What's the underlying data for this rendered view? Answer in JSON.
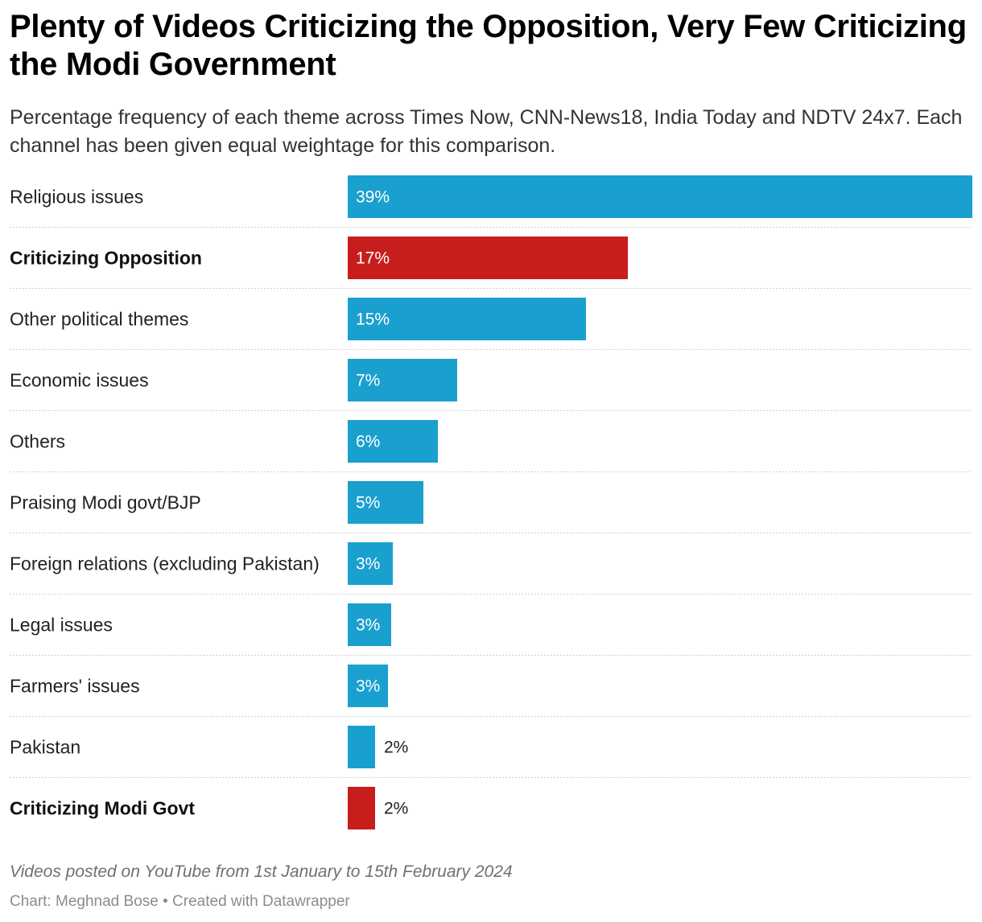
{
  "chart_data": {
    "type": "bar",
    "orientation": "horizontal",
    "title": "Plenty of Videos Criticizing the Opposition, Very Few Criticizing the Modi Government",
    "subtitle": "Percentage frequency of each theme across Times Now, CNN-News18, India Today and NDTV 24x7. Each channel has been given equal weightage for this comparison.",
    "categories": [
      "Religious issues",
      "Criticizing Opposition",
      "Other political themes",
      "Economic issues",
      "Others",
      "Praising Modi govt/BJP",
      "Foreign relations (excluding Pakistan)",
      "Legal issues",
      "Farmers' issues",
      "Pakistan",
      "Criticizing Modi Govt"
    ],
    "values": [
      38.8,
      17.4,
      14.8,
      6.8,
      5.6,
      4.7,
      2.8,
      2.7,
      2.5,
      1.7,
      1.7
    ],
    "value_labels": [
      "39%",
      "17%",
      "15%",
      "7%",
      "6%",
      "5%",
      "3%",
      "3%",
      "3%",
      "2%",
      "2%"
    ],
    "highlighted": [
      false,
      true,
      false,
      false,
      false,
      false,
      false,
      false,
      false,
      false,
      true
    ],
    "unit": "%",
    "xlim": [
      0,
      38.8
    ],
    "notes": "Videos posted on YouTube from 1st January to 15th February 2024",
    "byline": "Chart: Meghnad Bose • Created with Datawrapper"
  },
  "colors": {
    "default_bar": "#1aa0cf",
    "highlight_bar": "#c71e1d",
    "separator": "#cfcfcf"
  }
}
